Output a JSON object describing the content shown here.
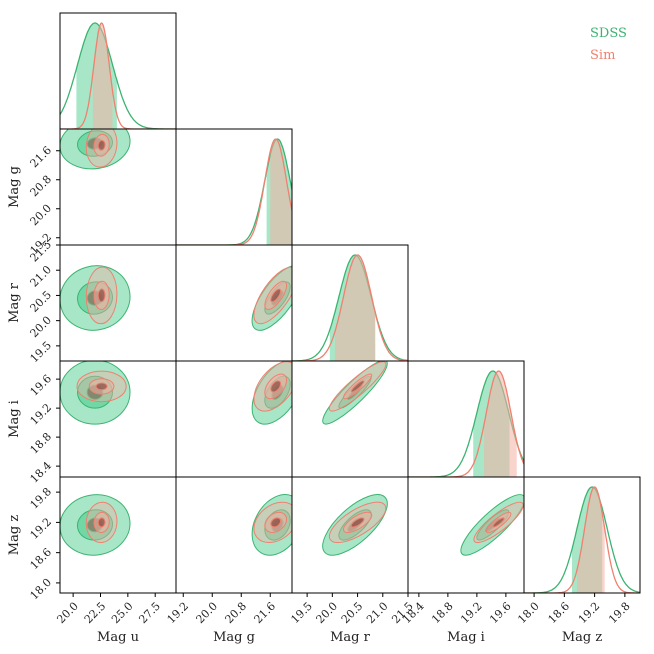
{
  "chart_data": {
    "type": "corner",
    "title": "",
    "series": [
      {
        "name": "SDSS",
        "color": "#3cb371",
        "fill": "#5fd39a"
      },
      {
        "name": "Sim",
        "color": "#f08070",
        "fill": "#f4b0a4"
      }
    ],
    "variables": [
      {
        "name": "u",
        "label": "Mag u",
        "range": [
          18.8,
          29.4
        ],
        "ticks": [
          "20.0",
          "22.5",
          "25.0",
          "27.5"
        ],
        "tick_values": [
          20.0,
          22.5,
          25.0,
          27.5
        ],
        "hist": {
          "SDSS": {
            "mean": 22.0,
            "sd": 1.6
          },
          "Sim": {
            "mean": 22.6,
            "sd": 0.7
          }
        },
        "interval": {
          "SDSS": [
            20.3,
            24.0
          ],
          "Sim": [
            21.8,
            23.6
          ]
        }
      },
      {
        "name": "g",
        "label": "Mag g",
        "range": [
          19.0,
          22.2
        ],
        "ticks": [
          "19.2",
          "20.0",
          "20.8",
          "21.6"
        ],
        "tick_values": [
          19.2,
          20.0,
          20.8,
          21.6
        ],
        "hist": {
          "SDSS": {
            "mean": 21.8,
            "sd": 0.35
          },
          "Sim": {
            "mean": 21.75,
            "sd": 0.3
          }
        },
        "interval": {
          "SDSS": [
            21.5,
            22.2
          ],
          "Sim": [
            21.6,
            22.2
          ]
        }
      },
      {
        "name": "r",
        "label": "Mag r",
        "range": [
          19.2,
          21.5
        ],
        "ticks": [
          "19.5",
          "20.0",
          "20.5",
          "21.0",
          "21.5"
        ],
        "tick_values": [
          19.5,
          20.0,
          20.5,
          21.0,
          21.5
        ],
        "hist": {
          "SDSS": {
            "mean": 20.45,
            "sd": 0.32
          },
          "Sim": {
            "mean": 20.5,
            "sd": 0.28
          }
        },
        "interval": {
          "SDSS": [
            19.95,
            20.85
          ],
          "Sim": [
            20.05,
            20.85
          ]
        }
      },
      {
        "name": "i",
        "label": "Mag i",
        "range": [
          18.25,
          19.85
        ],
        "ticks": [
          "18.4",
          "18.8",
          "19.2",
          "19.6"
        ],
        "tick_values": [
          18.4,
          18.8,
          19.2,
          19.6
        ],
        "hist": {
          "SDSS": {
            "mean": 19.42,
            "sd": 0.22
          },
          "Sim": {
            "mean": 19.5,
            "sd": 0.17
          }
        },
        "interval": {
          "SDSS": [
            19.15,
            19.65
          ],
          "Sim": [
            19.3,
            19.75
          ]
        }
      },
      {
        "name": "z",
        "label": "Mag z",
        "range": [
          17.8,
          20.1
        ],
        "ticks": [
          "18.0",
          "18.6",
          "19.2",
          "19.8"
        ],
        "tick_values": [
          18.0,
          18.6,
          19.2,
          19.8
        ],
        "hist": {
          "SDSS": {
            "mean": 19.15,
            "sd": 0.3
          },
          "Sim": {
            "mean": 19.2,
            "sd": 0.2
          }
        },
        "interval": {
          "SDSS": [
            18.75,
            19.35
          ],
          "Sim": [
            18.85,
            19.4
          ]
        }
      }
    ],
    "pairs": [
      {
        "x": "u",
        "y": "g",
        "corr": 0.1
      },
      {
        "x": "u",
        "y": "r",
        "corr": 0.05
      },
      {
        "x": "u",
        "y": "i",
        "corr": 0.0
      },
      {
        "x": "u",
        "y": "z",
        "corr": 0.05
      },
      {
        "x": "g",
        "y": "r",
        "corr": 0.7
      },
      {
        "x": "g",
        "y": "i",
        "corr": 0.5
      },
      {
        "x": "g",
        "y": "z",
        "corr": 0.3
      },
      {
        "x": "r",
        "y": "i",
        "corr": 0.9
      },
      {
        "x": "r",
        "y": "z",
        "corr": 0.7
      },
      {
        "x": "i",
        "y": "z",
        "corr": 0.85
      }
    ],
    "legend": {
      "placement": "top-right",
      "entries": [
        "SDSS",
        "Sim"
      ]
    }
  }
}
